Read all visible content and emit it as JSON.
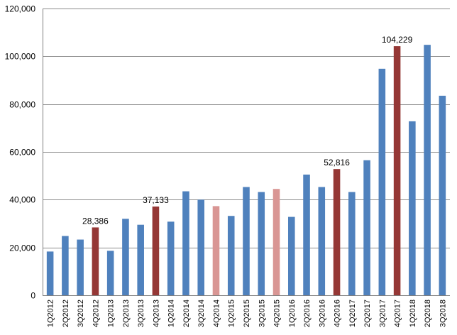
{
  "chart_data": {
    "type": "bar",
    "title": "",
    "xlabel": "",
    "ylabel": "",
    "ylim": [
      0,
      120000
    ],
    "yticks": [
      0,
      20000,
      40000,
      60000,
      80000,
      100000,
      120000
    ],
    "ytick_labels": [
      "0",
      "20,000",
      "40,000",
      "60,000",
      "80,000",
      "100,000",
      "120,000"
    ],
    "grid": "horizontal",
    "legend": "none",
    "colors": {
      "default": "#4f81bd",
      "q4_highlight": "#953735",
      "q4_light": "#d99694"
    },
    "categories": [
      "1Q2012",
      "2Q2012",
      "3Q2012",
      "4Q2012",
      "1Q2013",
      "2Q2013",
      "3Q2013",
      "4Q2013",
      "1Q2014",
      "2Q2014",
      "3Q2014",
      "4Q2014",
      "1Q2015",
      "2Q2015",
      "3Q2015",
      "4Q2015",
      "1Q2016",
      "2Q2016",
      "3Q2016",
      "4Q2016",
      "1Q2017",
      "2Q2017",
      "3Q2017",
      "4Q2017",
      "1Q2018",
      "2Q2018",
      "3Q2018"
    ],
    "values": [
      18300,
      24800,
      23300,
      28386,
      18600,
      32000,
      29500,
      37133,
      30800,
      43500,
      40000,
      37300,
      33200,
      45300,
      43200,
      44500,
      32800,
      50500,
      45300,
      52816,
      43200,
      56500,
      94800,
      104229,
      72800,
      104800,
      83500
    ],
    "bar_colors": [
      "default",
      "default",
      "default",
      "q4_highlight",
      "default",
      "default",
      "default",
      "q4_highlight",
      "default",
      "default",
      "default",
      "q4_light",
      "default",
      "default",
      "default",
      "q4_light",
      "default",
      "default",
      "default",
      "q4_highlight",
      "default",
      "default",
      "default",
      "q4_highlight",
      "default",
      "default",
      "default"
    ],
    "data_labels": [
      {
        "category": "4Q2012",
        "text": "28,386"
      },
      {
        "category": "4Q2013",
        "text": "37,133"
      },
      {
        "category": "4Q2016",
        "text": "52,816"
      },
      {
        "category": "4Q2017",
        "text": "104,229"
      }
    ]
  }
}
